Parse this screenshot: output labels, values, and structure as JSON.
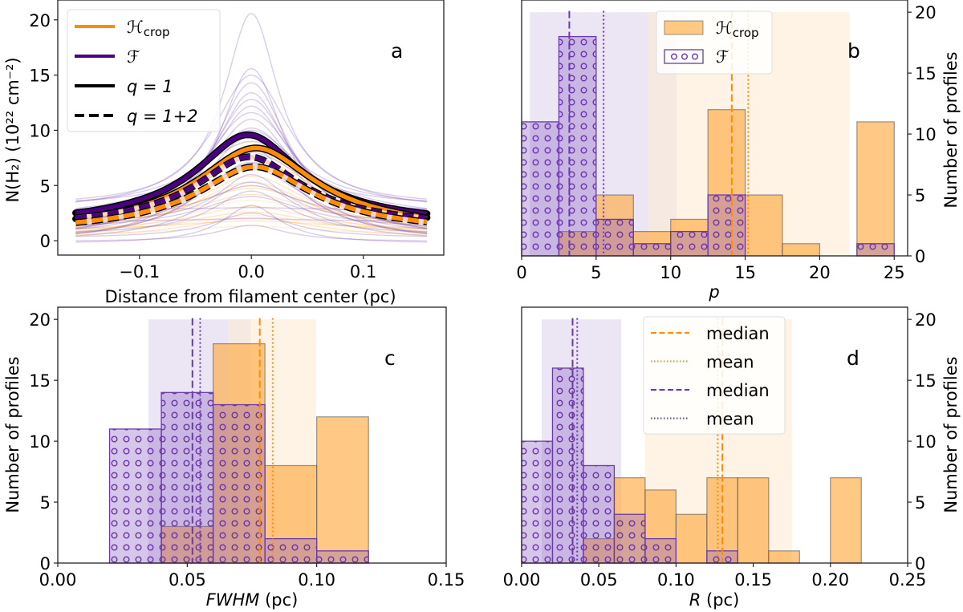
{
  "colors": {
    "hcrop": "#ff8c00",
    "hcrop_fill": "#ffa533",
    "hcrop_range": "#fdebd3",
    "f": "#4b0082",
    "f_edge": "#6a3aa8",
    "f_fill": "#b9a0d6",
    "f_hatch": "#6a32b0",
    "f_range": "#e6def0",
    "model_outline": "#000000"
  },
  "chart_data": [
    {
      "id": "a",
      "type": "line",
      "panel_letter": "a",
      "xlabel": "Distance from filament center (pc)",
      "ylabel": "N(H₂) (10²² cm⁻²)",
      "xlim": [
        -0.173,
        0.172
      ],
      "ylim": [
        -1.3,
        21.8
      ],
      "xticks": [
        -0.1,
        0.0,
        0.1
      ],
      "xtick_labels": [
        "−0.1",
        "0.0",
        "0.1"
      ],
      "yticks": [
        0,
        5,
        10,
        15,
        20
      ],
      "ytick_labels": [
        "0",
        "5",
        "10",
        "15",
        "20"
      ],
      "x_extent": [
        -0.157,
        0.157
      ],
      "legend": {
        "position": "top-left",
        "entries": [
          {
            "label": "ℋ",
            "sub": "crop",
            "style": "solid",
            "color_key": "hcrop"
          },
          {
            "label": "ℱ",
            "sub": "",
            "style": "solid",
            "color_key": "f"
          },
          {
            "label": "q = 1",
            "sub": "",
            "style": "solid",
            "color_key": "model_outline"
          },
          {
            "label": "q = 1+2",
            "sub": "",
            "style": "dashed",
            "color_key": "model_outline"
          }
        ]
      },
      "model_profiles": [
        {
          "name": "F q=1",
          "group": "f",
          "style": "solid",
          "peak": 9.6,
          "center": -0.003,
          "width": 0.05,
          "power": 2.2,
          "background": 1.05,
          "slope": 6.5
        },
        {
          "name": "Hcrop q=1",
          "group": "hcrop",
          "style": "solid",
          "peak": 8.4,
          "center": 0.004,
          "width": 0.057,
          "power": 2.2,
          "background": 0.45,
          "slope": 7.2
        },
        {
          "name": "F q=1+2",
          "group": "f",
          "style": "dashed",
          "peak": 7.6,
          "center": -0.002,
          "width": 0.05,
          "power": 2.2,
          "background": 0.95,
          "slope": 5.8
        },
        {
          "name": "Hcrop q=1+2",
          "group": "hcrop",
          "style": "dashed",
          "peak": 6.7,
          "center": 0.003,
          "width": 0.055,
          "power": 2.2,
          "background": 0.5,
          "slope": 6.0
        }
      ],
      "individual_profiles": {
        "f": [
          [
            20.6,
            0.028
          ],
          [
            16.0,
            0.035
          ],
          [
            15.0,
            0.04
          ],
          [
            14.3,
            0.04
          ],
          [
            13.4,
            0.038
          ],
          [
            13.0,
            0.045
          ],
          [
            12.2,
            0.04
          ],
          [
            11.6,
            0.05
          ],
          [
            11.0,
            0.045
          ],
          [
            10.5,
            0.055
          ],
          [
            10.0,
            0.048
          ],
          [
            9.5,
            0.05
          ],
          [
            9.0,
            0.06
          ],
          [
            8.5,
            0.045
          ],
          [
            8.0,
            0.05
          ],
          [
            7.5,
            0.055
          ],
          [
            7.0,
            0.04
          ],
          [
            6.5,
            0.06
          ],
          [
            6.0,
            0.035
          ],
          [
            5.5,
            0.05
          ],
          [
            5.0,
            0.045
          ],
          [
            4.5,
            0.04
          ],
          [
            4.0,
            0.055
          ],
          [
            3.5,
            0.03
          ],
          [
            3.0,
            0.05
          ],
          [
            2.5,
            0.04
          ],
          [
            2.0,
            0.045
          ],
          [
            1.5,
            0.035
          ]
        ],
        "hcrop": [
          [
            8.9,
            0.07
          ],
          [
            8.0,
            0.065
          ],
          [
            7.2,
            0.075
          ],
          [
            6.5,
            0.07
          ],
          [
            6.0,
            0.06
          ],
          [
            5.5,
            0.07
          ],
          [
            5.0,
            0.065
          ],
          [
            4.6,
            0.075
          ],
          [
            4.0,
            0.06
          ],
          [
            3.6,
            0.07
          ],
          [
            3.2,
            0.065
          ],
          [
            2.8,
            0.075
          ],
          [
            2.4,
            0.06
          ],
          [
            2.0,
            0.07
          ],
          [
            1.6,
            0.08
          ],
          [
            1.2,
            0.07
          ]
        ],
        "backgrounds_f": [
          3.0,
          -0.4,
          2.5,
          0.0,
          1.5,
          -0.2,
          2.0,
          0.5,
          1.0,
          -0.3,
          2.8,
          0.2,
          1.8,
          -0.1
        ],
        "backgrounds_hcrop": [
          2.4,
          0.5,
          1.8,
          1.0,
          2.0,
          0.2,
          1.5,
          0.8
        ]
      }
    },
    {
      "id": "b",
      "type": "bar",
      "panel_letter": "b",
      "xlabel": "p",
      "ylabel": "Number of profiles",
      "xlim": [
        0,
        25.9
      ],
      "ylim": [
        0,
        21
      ],
      "xticks": [
        0,
        5,
        10,
        15,
        20,
        25
      ],
      "xtick_labels": [
        "0",
        "5",
        "10",
        "15",
        "20",
        "25"
      ],
      "yticks": [
        0,
        5,
        10,
        15,
        20
      ],
      "ytick_labels": [
        "0",
        "5",
        "10",
        "15",
        "20"
      ],
      "yaxis_side": "right",
      "bin_edges": [
        0,
        2.5,
        5,
        7.5,
        10,
        12.5,
        15,
        17.5,
        20,
        22.5,
        25
      ],
      "series": [
        {
          "name": "ℋcrop",
          "key": "hcrop",
          "values": [
            0,
            2,
            5,
            2,
            3,
            12,
            5,
            1,
            0,
            11
          ]
        },
        {
          "name": "ℱ",
          "key": "f",
          "values": [
            11,
            18,
            3,
            1,
            2,
            5,
            0,
            0,
            0,
            1
          ]
        }
      ],
      "stats": {
        "hcrop": {
          "median": 14.1,
          "mean": 15.2,
          "range": [
            8.5,
            22.0
          ]
        },
        "f": {
          "median": 3.2,
          "mean": 5.5,
          "range": [
            0.55,
            10.4
          ]
        }
      },
      "legend": {
        "position": "top-center",
        "entries": [
          {
            "label": "ℋ",
            "sub": "crop",
            "kind": "patch",
            "key": "hcrop"
          },
          {
            "label": "ℱ",
            "sub": "",
            "kind": "hatched-patch",
            "key": "f"
          }
        ]
      }
    },
    {
      "id": "c",
      "type": "bar",
      "panel_letter": "c",
      "xlabel": "FWHM (pc)",
      "ylabel": "Number of profiles",
      "xlim": [
        0,
        0.15
      ],
      "ylim": [
        0,
        21
      ],
      "xticks": [
        0,
        0.05,
        0.1,
        0.15
      ],
      "xtick_labels": [
        "0.00",
        "0.05",
        "0.10",
        "0.15"
      ],
      "yticks": [
        0,
        5,
        10,
        15,
        20
      ],
      "ytick_labels": [
        "0",
        "5",
        "10",
        "15",
        "20"
      ],
      "yaxis_side": "left",
      "bin_edges": [
        0.02,
        0.04,
        0.06,
        0.08,
        0.1,
        0.12
      ],
      "series": [
        {
          "name": "ℋcrop",
          "key": "hcrop",
          "values": [
            0,
            3,
            18,
            8,
            12
          ]
        },
        {
          "name": "ℱ",
          "key": "f",
          "values": [
            11,
            14,
            13,
            2,
            1
          ]
        }
      ],
      "stats": {
        "hcrop": {
          "median": 0.078,
          "mean": 0.083,
          "range": [
            0.066,
            0.0997
          ]
        },
        "f": {
          "median": 0.052,
          "mean": 0.055,
          "range": [
            0.035,
            0.0745
          ]
        }
      }
    },
    {
      "id": "d",
      "type": "bar",
      "panel_letter": "d",
      "xlabel": "R (pc)",
      "ylabel": "Number of profiles",
      "xlim": [
        0,
        0.25
      ],
      "ylim": [
        0,
        21
      ],
      "xticks": [
        0,
        0.05,
        0.1,
        0.15,
        0.2,
        0.25
      ],
      "xtick_labels": [
        "0.00",
        "0.05",
        "0.10",
        "0.15",
        "0.20",
        "0.25"
      ],
      "yticks": [
        0,
        5,
        10,
        15,
        20
      ],
      "ytick_labels": [
        "0",
        "5",
        "10",
        "15",
        "20"
      ],
      "yaxis_side": "right",
      "bin_edges": [
        0,
        0.02,
        0.04,
        0.06,
        0.08,
        0.1,
        0.12,
        0.14,
        0.16,
        0.18,
        0.2,
        0.22
      ],
      "series": [
        {
          "name": "ℋcrop",
          "key": "hcrop",
          "values": [
            0,
            0,
            2,
            7,
            6,
            4,
            7,
            7,
            1,
            0,
            7
          ]
        },
        {
          "name": "ℱ",
          "key": "f",
          "values": [
            10,
            16,
            8,
            4,
            2,
            0,
            1,
            0,
            0,
            0,
            0
          ]
        }
      ],
      "stats": {
        "hcrop": {
          "median": 0.13,
          "mean": 0.127,
          "range": [
            0.08,
            0.175
          ]
        },
        "f": {
          "median": 0.033,
          "mean": 0.036,
          "range": [
            0.013,
            0.0645
          ]
        }
      },
      "legend": {
        "position": "top-right",
        "entries": [
          {
            "label": "median",
            "style": "dashed",
            "key": "hcrop"
          },
          {
            "label": "mean",
            "style": "dotted",
            "key": "hcrop"
          },
          {
            "label": "median",
            "style": "dashed",
            "key": "f"
          },
          {
            "label": "mean",
            "style": "dotted",
            "key": "f"
          }
        ]
      }
    }
  ]
}
